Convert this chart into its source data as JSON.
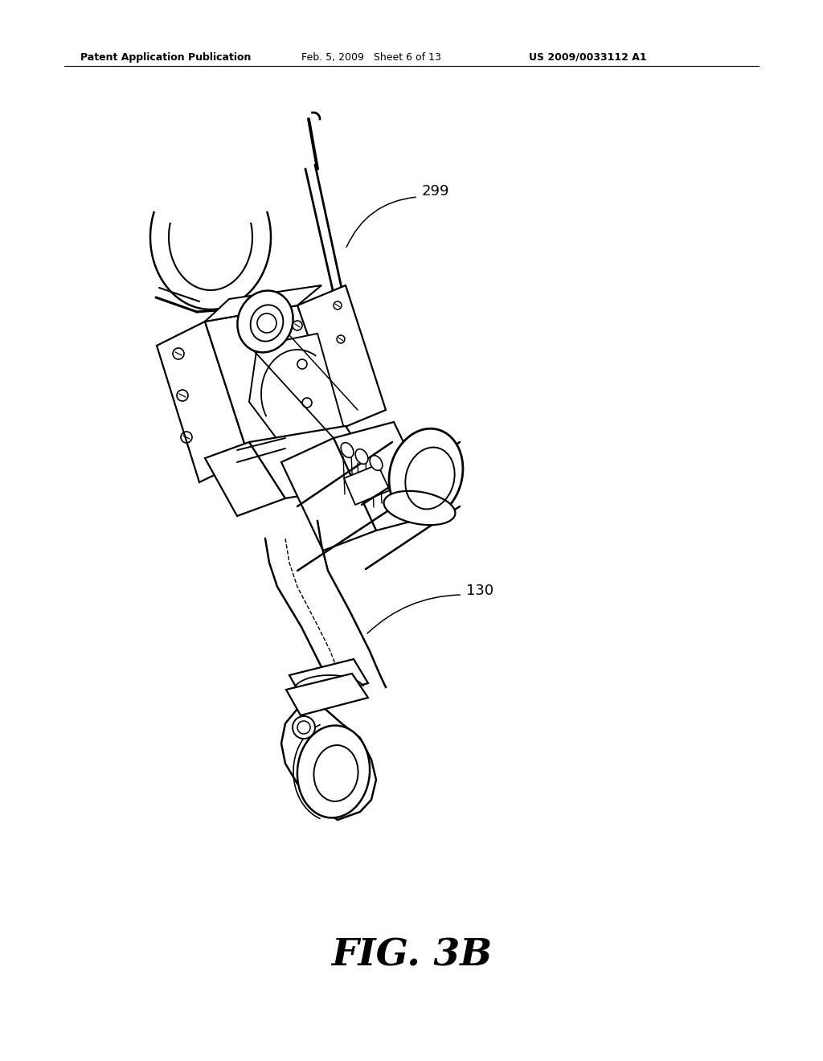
{
  "background_color": "#ffffff",
  "header_left": "Patent Application Publication",
  "header_center": "Feb. 5, 2009   Sheet 6 of 13",
  "header_right": "US 2009/0033112 A1",
  "figure_label": "FIG. 3B",
  "label_299": "299",
  "label_130": "130",
  "line_color": "#000000",
  "lw_main": 1.6,
  "lw_thin": 1.0,
  "lw_thick": 2.2,
  "header_fontsize": 9,
  "fig_label_fontsize": 34,
  "annotation_fontsize": 13
}
